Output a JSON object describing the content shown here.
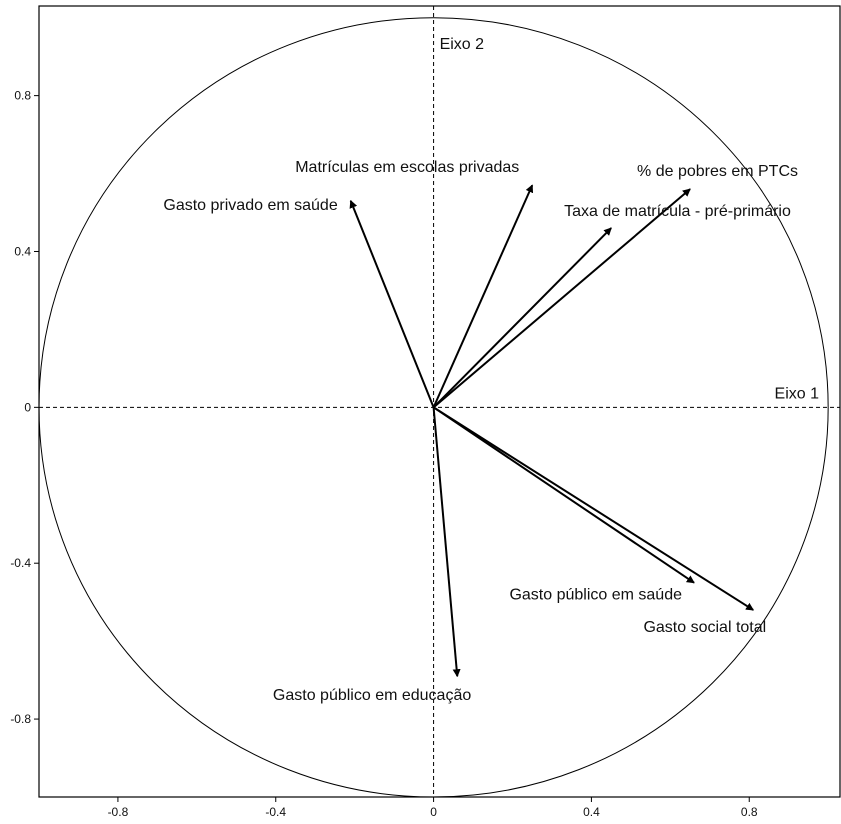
{
  "chart_data": {
    "type": "correlation-circle",
    "title": "",
    "xlim": [
      -1.0,
      1.03
    ],
    "ylim": [
      -1.0,
      1.03
    ],
    "x_ticks": [
      -0.8,
      -0.4,
      0,
      0.4,
      0.8
    ],
    "x_tick_labels": [
      "-0.8",
      "-0.4",
      "0",
      "0.4",
      "0.8"
    ],
    "y_ticks": [
      0.8,
      0.4,
      0,
      -0.4,
      -0.8
    ],
    "y_tick_labels": [
      "0.8",
      "0.4",
      "0",
      "-0.4",
      "-0.8"
    ],
    "axis_names": {
      "x": "Eixo 1",
      "y": "Eixo 2"
    },
    "circle_radius": 1.0,
    "grid": false,
    "variables": [
      {
        "label": "Matrículas em escolas privadas",
        "x": 0.25,
        "y": 0.57
      },
      {
        "label": "% de pobres em PTCs",
        "x": 0.65,
        "y": 0.56
      },
      {
        "label": "Taxa de matrícula - pré-primário",
        "x": 0.45,
        "y": 0.46
      },
      {
        "label": "Gasto privado em saúde",
        "x": -0.21,
        "y": 0.53
      },
      {
        "label": "Gasto público em saúde",
        "x": 0.66,
        "y": -0.45
      },
      {
        "label": "Gasto social total",
        "x": 0.81,
        "y": -0.52
      },
      {
        "label": "Gasto público em educação",
        "x": 0.06,
        "y": -0.69
      }
    ]
  }
}
